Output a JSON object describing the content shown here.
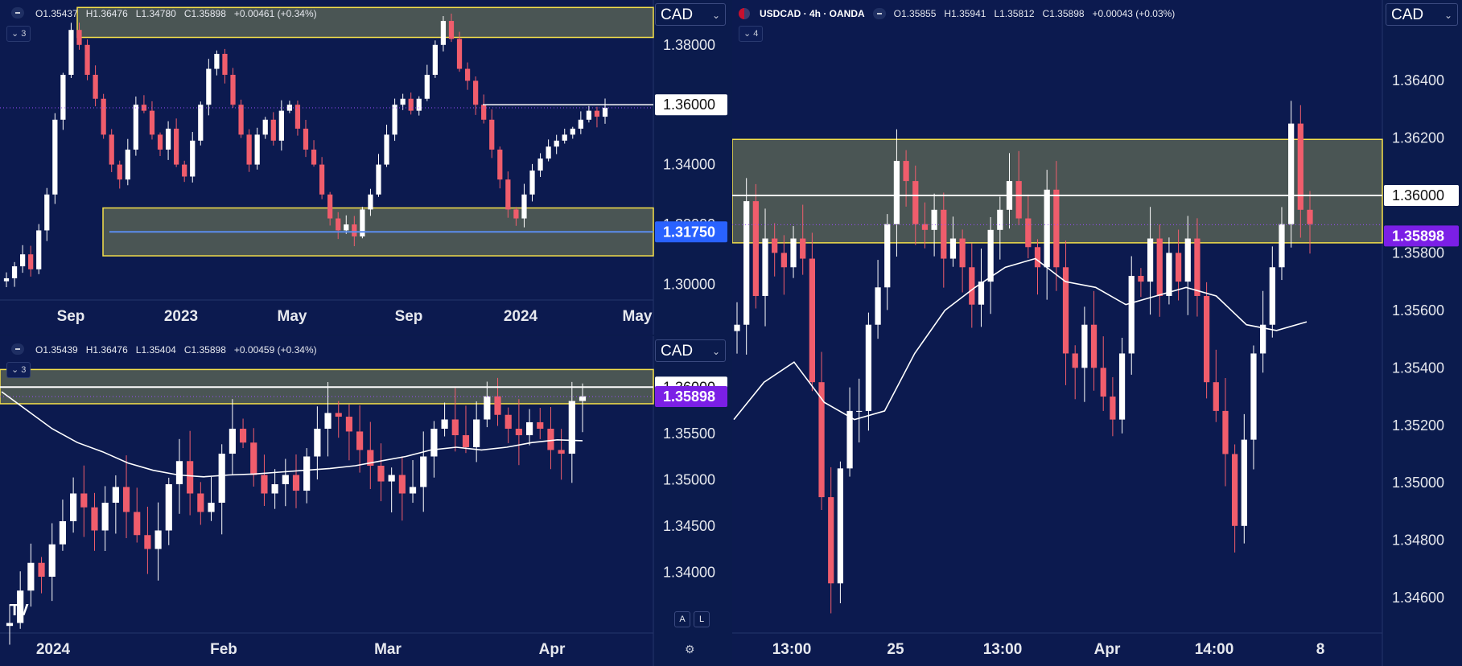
{
  "currency": "CAD",
  "colors": {
    "background": "#0c1a4f",
    "up": "#ffffff",
    "down": "#f05d6c",
    "zone_border": "#f5e04a",
    "zone_fill": "#5f6a55",
    "ma_line": "#ffffff",
    "price_tag": "#7b1fe6",
    "support_tag": "#2962ff"
  },
  "panel_tl": {
    "legend": {
      "o": "O1.35437",
      "h": "H1.36476",
      "l": "L1.34780",
      "c": "C1.35898",
      "chg": "+0.00461 (+0.34%)"
    },
    "indicator_count": "3",
    "x_ticks": [
      "Sep",
      "2023",
      "May",
      "Sep",
      "2024",
      "May"
    ],
    "y_ticks": [
      "1.38000",
      "1.34000",
      "1.32000",
      "1.30000"
    ],
    "level_tag": "1.36000",
    "support_tag": "1.31750"
  },
  "panel_bl": {
    "legend": {
      "o": "O1.35439",
      "h": "H1.36476",
      "l": "L1.35404",
      "c": "C1.35898",
      "chg": "+0.00459 (+0.34%)"
    },
    "indicator_count": "3",
    "x_ticks": [
      "2024",
      "Feb",
      "Mar",
      "Apr"
    ],
    "y_ticks": [
      "1.35500",
      "1.35000",
      "1.34500",
      "1.34000"
    ],
    "level_tag": "1.36000",
    "price_tag": "1.35898",
    "scale_buttons": [
      "A",
      "L"
    ],
    "logo": "TV"
  },
  "panel_r": {
    "symbol": "USDCAD · 4h · OANDA",
    "legend": {
      "o": "O1.35855",
      "h": "H1.35941",
      "l": "L1.35812",
      "c": "C1.35898",
      "chg": "+0.00043 (+0.03%)"
    },
    "indicator_count": "4",
    "x_ticks": [
      "13:00",
      "25",
      "13:00",
      "Apr",
      "14:00",
      "8"
    ],
    "y_ticks": [
      "1.36400",
      "1.36200",
      "1.35800",
      "1.35600",
      "1.35400",
      "1.35200",
      "1.35000",
      "1.34800",
      "1.34600"
    ],
    "level_tag": "1.36000",
    "price_tag": "1.35898"
  },
  "chart_data": [
    {
      "type": "candlestick",
      "symbol": "USDCAD",
      "timeframe": "weekly",
      "ylim": [
        1.295,
        1.395
      ],
      "x_ticks": [
        "Sep",
        "2023",
        "May",
        "Sep",
        "2024",
        "May"
      ],
      "y_ticks": [
        1.38,
        1.36,
        1.34,
        1.32,
        1.3
      ],
      "last_close": 1.35898,
      "zones": [
        [
          1.3825,
          1.3925
        ],
        [
          1.3095,
          1.3255
        ]
      ],
      "levels": {
        "resistance": 1.36,
        "support": 1.3175
      },
      "close_path": [
        1.302,
        1.306,
        1.31,
        1.305,
        1.318,
        1.33,
        1.355,
        1.37,
        1.385,
        1.38,
        1.37,
        1.362,
        1.35,
        1.34,
        1.335,
        1.345,
        1.36,
        1.358,
        1.35,
        1.345,
        1.352,
        1.34,
        1.336,
        1.348,
        1.36,
        1.372,
        1.377,
        1.37,
        1.36,
        1.35,
        1.34,
        1.35,
        1.355,
        1.348,
        1.358,
        1.36,
        1.352,
        1.345,
        1.34,
        1.33,
        1.322,
        1.318,
        1.32,
        1.316,
        1.325,
        1.33,
        1.34,
        1.35,
        1.36,
        1.362,
        1.358,
        1.362,
        1.37,
        1.38,
        1.388,
        1.382,
        1.372,
        1.368,
        1.36,
        1.355,
        1.345,
        1.335,
        1.325,
        1.322,
        1.33,
        1.338,
        1.342,
        1.346,
        1.348,
        1.35,
        1.352,
        1.355,
        1.358,
        1.356,
        1.359
      ]
    },
    {
      "type": "candlestick",
      "symbol": "USDCAD",
      "timeframe": "daily",
      "ylim": [
        1.3335,
        1.3655
      ],
      "x_ticks": [
        "2024",
        "Feb",
        "Mar",
        "Apr"
      ],
      "y_ticks": [
        1.36,
        1.355,
        1.35,
        1.345,
        1.34
      ],
      "last_close": 1.35898,
      "zone": [
        1.3582,
        1.3619
      ],
      "levels": {
        "resistance": 1.36
      },
      "moving_average": [
        1.3595,
        1.3575,
        1.3555,
        1.354,
        1.353,
        1.3518,
        1.351,
        1.3505,
        1.3503,
        1.3505,
        1.3506,
        1.3508,
        1.351,
        1.3512,
        1.3515,
        1.352,
        1.3525,
        1.3532,
        1.3535,
        1.3532,
        1.3535,
        1.354,
        1.3543,
        1.3542
      ],
      "close_path": [
        1.3345,
        1.338,
        1.341,
        1.3395,
        1.343,
        1.3455,
        1.3485,
        1.347,
        1.3445,
        1.3475,
        1.3492,
        1.3465,
        1.344,
        1.3425,
        1.3445,
        1.3495,
        1.352,
        1.3485,
        1.3465,
        1.3475,
        1.3528,
        1.3555,
        1.354,
        1.3505,
        1.3485,
        1.3495,
        1.3505,
        1.3488,
        1.3525,
        1.3555,
        1.3572,
        1.3568,
        1.3552,
        1.3532,
        1.3515,
        1.3498,
        1.3505,
        1.3485,
        1.3492,
        1.3525,
        1.3555,
        1.3565,
        1.3548,
        1.3535,
        1.3565,
        1.359,
        1.357,
        1.3555,
        1.3548,
        1.3562,
        1.3555,
        1.3532,
        1.3528,
        1.3585,
        1.359
      ]
    },
    {
      "type": "candlestick",
      "symbol": "USDCAD",
      "timeframe": "4h",
      "ylim": [
        1.3448,
        1.3668
      ],
      "x_ticks": [
        "13:00",
        "25",
        "13:00",
        "Apr",
        "14:00",
        "8"
      ],
      "y_ticks": [
        1.364,
        1.362,
        1.36,
        1.358,
        1.356,
        1.354,
        1.352,
        1.35,
        1.348,
        1.346
      ],
      "last_close": 1.35898,
      "zone": [
        1.35835,
        1.36195
      ],
      "levels": {
        "resistance": 1.36
      },
      "moving_average": [
        1.3522,
        1.3535,
        1.3542,
        1.3528,
        1.3522,
        1.3525,
        1.3545,
        1.356,
        1.3568,
        1.3575,
        1.3578,
        1.357,
        1.3568,
        1.3562,
        1.3565,
        1.3568,
        1.3565,
        1.3555,
        1.3553,
        1.3556
      ],
      "close_path": [
        1.3555,
        1.3598,
        1.3565,
        1.3585,
        1.358,
        1.3575,
        1.3585,
        1.3578,
        1.3535,
        1.3495,
        1.3465,
        1.3505,
        1.3525,
        1.3525,
        1.3555,
        1.3568,
        1.359,
        1.3612,
        1.3605,
        1.359,
        1.3588,
        1.3595,
        1.3578,
        1.3585,
        1.3575,
        1.3562,
        1.357,
        1.3588,
        1.3595,
        1.3605,
        1.3592,
        1.3582,
        1.3575,
        1.3602,
        1.3575,
        1.3545,
        1.354,
        1.3555,
        1.354,
        1.353,
        1.3522,
        1.3545,
        1.3572,
        1.357,
        1.3585,
        1.3565,
        1.358,
        1.357,
        1.3585,
        1.3565,
        1.3535,
        1.3525,
        1.351,
        1.3485,
        1.3515,
        1.3545,
        1.3555,
        1.3575,
        1.359,
        1.3625,
        1.3595,
        1.359
      ]
    }
  ]
}
